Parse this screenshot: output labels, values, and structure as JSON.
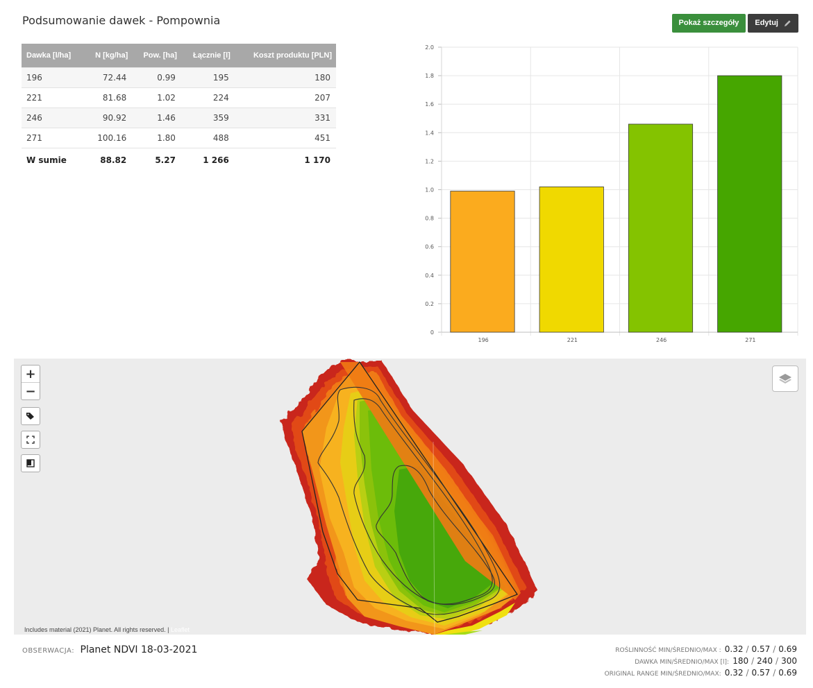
{
  "page": {
    "title": "Podsumowanie dawek - Pompownia",
    "details_button": "Pokaż szczegóły",
    "edit_button": "Edytuj"
  },
  "table": {
    "headers": [
      "Dawka [l/ha]",
      "N [kg/ha]",
      "Pow. [ha]",
      "Łącznie [l]",
      "Koszt produktu [PLN]"
    ],
    "rows": [
      [
        "196",
        "72.44",
        "0.99",
        "195",
        "180"
      ],
      [
        "221",
        "81.68",
        "1.02",
        "224",
        "207"
      ],
      [
        "246",
        "90.92",
        "1.46",
        "359",
        "331"
      ],
      [
        "271",
        "100.16",
        "1.80",
        "488",
        "451"
      ]
    ],
    "total": [
      "W sumie",
      "88.82",
      "5.27",
      "1 266",
      "1 170"
    ]
  },
  "chart_data": {
    "type": "bar",
    "categories": [
      "196",
      "221",
      "246",
      "271"
    ],
    "values": [
      0.99,
      1.02,
      1.46,
      1.8
    ],
    "colors": [
      "#fbab1e",
      "#f0d900",
      "#84c300",
      "#46a600"
    ],
    "ylim": [
      0,
      2.0
    ],
    "yticks": [
      "0",
      "0.2",
      "0.4",
      "0.6",
      "0.8",
      "1.0",
      "1.2",
      "1.4",
      "1.6",
      "1.8",
      "2.0"
    ],
    "title": "",
    "xlabel": "",
    "ylabel": "",
    "grid": true
  },
  "map": {
    "zoom_in": "+",
    "zoom_out": "−",
    "attribution": "Includes material (2021) Planet. All rights reserved. |",
    "attribution_link": "Leaflet",
    "controls": [
      "tag-icon",
      "fullscreen-icon",
      "square-icon",
      "layers-icon"
    ]
  },
  "observation": {
    "label": "OBSERWACJA:",
    "value": "Planet NDVI 18-03-2021"
  },
  "stats": [
    {
      "label": "ROŚLINNOŚĆ MIN/ŚREDNIO/MAX :",
      "min": "0.32",
      "avg": "0.57",
      "max": "0.69"
    },
    {
      "label": "DAWKA MIN/ŚREDNIO/MAX [l]:",
      "min": "180",
      "avg": "240",
      "max": "300"
    },
    {
      "label": "ORIGINAL RANGE MIN/ŚREDNIO/MAX:",
      "min": "0.32",
      "avg": "0.57",
      "max": "0.69"
    }
  ]
}
